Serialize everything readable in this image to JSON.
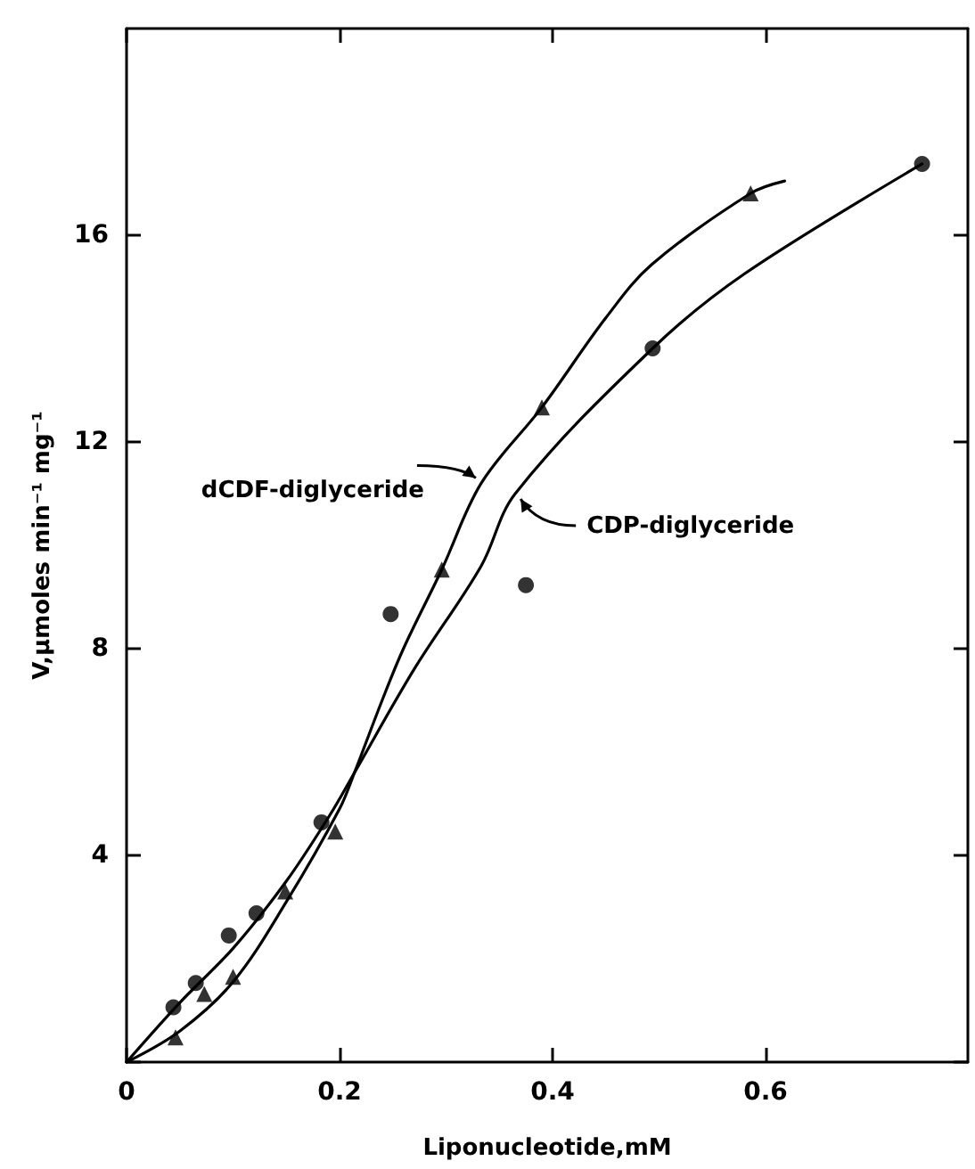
{
  "chart_data": {
    "type": "scatter",
    "xlabel": "Liponucleotide,mM",
    "ylabel": "V,µmoles min⁻¹ mg⁻¹",
    "xlim": [
      0,
      0.79
    ],
    "xticks": [
      0,
      0.2,
      0.4,
      0.6
    ],
    "ylim": [
      0,
      20
    ],
    "yticks": [
      {
        "value": 0,
        "label": null
      },
      4,
      8,
      12,
      16
    ],
    "series": [
      {
        "marker": "circle",
        "color": "#000000",
        "x": [
          0.044,
          0.065,
          0.096,
          0.122,
          0.183,
          0.248,
          0.375,
          0.494,
          0.747
        ],
        "values": [
          1.06,
          1.53,
          2.45,
          2.88,
          4.64,
          8.67,
          9.23,
          13.81,
          17.38
        ]
      },
      {
        "marker": "triangle",
        "color": "#000000",
        "x": [
          0.046,
          0.073,
          0.1,
          0.149,
          0.196,
          0.296,
          0.39,
          0.586
        ],
        "values": [
          0.48,
          1.32,
          1.65,
          3.3,
          4.46,
          9.53,
          12.67,
          16.81
        ]
      },
      {
        "type": "line",
        "marker": "none",
        "line_style": "solid",
        "color": "#000000",
        "x": [
          0,
          0.05,
          0.1,
          0.15,
          0.19,
          0.214,
          0.27,
          0.333,
          0.365,
          0.494,
          0.58,
          0.747
        ],
        "values": [
          0,
          1.15,
          2.2,
          3.5,
          4.75,
          5.6,
          7.6,
          9.6,
          11.0,
          13.81,
          15.25,
          17.38
        ]
      },
      {
        "type": "line",
        "marker": "none",
        "line_style": "solid",
        "color": "#000000",
        "x": [
          0,
          0.05,
          0.1,
          0.15,
          0.2,
          0.214,
          0.24,
          0.26,
          0.296,
          0.333,
          0.39,
          0.45,
          0.493,
          0.586,
          0.618
        ],
        "values": [
          0,
          0.6,
          1.55,
          3.1,
          4.9,
          5.6,
          7.0,
          8.0,
          9.53,
          11.2,
          12.67,
          14.4,
          15.43,
          16.81,
          17.05
        ]
      }
    ],
    "annotations": [
      {
        "text": "dCDF-diglyceride",
        "x": 0.333,
        "y": 11.2
      },
      {
        "text": "CDP-diglyceride",
        "x": 0.365,
        "y": 11.0
      }
    ]
  }
}
